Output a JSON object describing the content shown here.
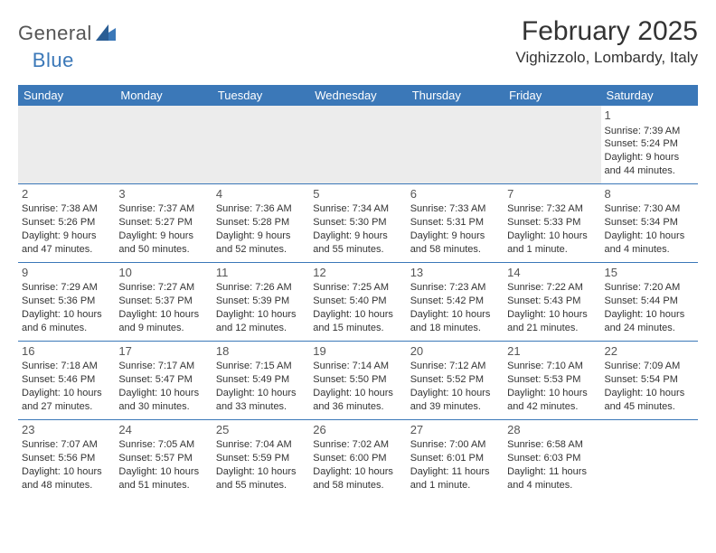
{
  "logo": {
    "general": "General",
    "blue": "Blue"
  },
  "title": "February 2025",
  "location": "Vighizzolo, Lombardy, Italy",
  "colors": {
    "header_bg": "#3b78b8",
    "header_text": "#ffffff",
    "rule": "#3b78b8",
    "body_text": "#333333",
    "empty_bg": "#ececec",
    "logo_gray": "#555555",
    "logo_blue": "#3b78b8"
  },
  "weekdays": [
    "Sunday",
    "Monday",
    "Tuesday",
    "Wednesday",
    "Thursday",
    "Friday",
    "Saturday"
  ],
  "weeks": [
    [
      null,
      null,
      null,
      null,
      null,
      null,
      {
        "n": "1",
        "sr": "7:39 AM",
        "ss": "5:24 PM",
        "d1": "9 hours",
        "d2": "and 44 minutes."
      }
    ],
    [
      {
        "n": "2",
        "sr": "7:38 AM",
        "ss": "5:26 PM",
        "d1": "9 hours",
        "d2": "and 47 minutes."
      },
      {
        "n": "3",
        "sr": "7:37 AM",
        "ss": "5:27 PM",
        "d1": "9 hours",
        "d2": "and 50 minutes."
      },
      {
        "n": "4",
        "sr": "7:36 AM",
        "ss": "5:28 PM",
        "d1": "9 hours",
        "d2": "and 52 minutes."
      },
      {
        "n": "5",
        "sr": "7:34 AM",
        "ss": "5:30 PM",
        "d1": "9 hours",
        "d2": "and 55 minutes."
      },
      {
        "n": "6",
        "sr": "7:33 AM",
        "ss": "5:31 PM",
        "d1": "9 hours",
        "d2": "and 58 minutes."
      },
      {
        "n": "7",
        "sr": "7:32 AM",
        "ss": "5:33 PM",
        "d1": "10 hours",
        "d2": "and 1 minute."
      },
      {
        "n": "8",
        "sr": "7:30 AM",
        "ss": "5:34 PM",
        "d1": "10 hours",
        "d2": "and 4 minutes."
      }
    ],
    [
      {
        "n": "9",
        "sr": "7:29 AM",
        "ss": "5:36 PM",
        "d1": "10 hours",
        "d2": "and 6 minutes."
      },
      {
        "n": "10",
        "sr": "7:27 AM",
        "ss": "5:37 PM",
        "d1": "10 hours",
        "d2": "and 9 minutes."
      },
      {
        "n": "11",
        "sr": "7:26 AM",
        "ss": "5:39 PM",
        "d1": "10 hours",
        "d2": "and 12 minutes."
      },
      {
        "n": "12",
        "sr": "7:25 AM",
        "ss": "5:40 PM",
        "d1": "10 hours",
        "d2": "and 15 minutes."
      },
      {
        "n": "13",
        "sr": "7:23 AM",
        "ss": "5:42 PM",
        "d1": "10 hours",
        "d2": "and 18 minutes."
      },
      {
        "n": "14",
        "sr": "7:22 AM",
        "ss": "5:43 PM",
        "d1": "10 hours",
        "d2": "and 21 minutes."
      },
      {
        "n": "15",
        "sr": "7:20 AM",
        "ss": "5:44 PM",
        "d1": "10 hours",
        "d2": "and 24 minutes."
      }
    ],
    [
      {
        "n": "16",
        "sr": "7:18 AM",
        "ss": "5:46 PM",
        "d1": "10 hours",
        "d2": "and 27 minutes."
      },
      {
        "n": "17",
        "sr": "7:17 AM",
        "ss": "5:47 PM",
        "d1": "10 hours",
        "d2": "and 30 minutes."
      },
      {
        "n": "18",
        "sr": "7:15 AM",
        "ss": "5:49 PM",
        "d1": "10 hours",
        "d2": "and 33 minutes."
      },
      {
        "n": "19",
        "sr": "7:14 AM",
        "ss": "5:50 PM",
        "d1": "10 hours",
        "d2": "and 36 minutes."
      },
      {
        "n": "20",
        "sr": "7:12 AM",
        "ss": "5:52 PM",
        "d1": "10 hours",
        "d2": "and 39 minutes."
      },
      {
        "n": "21",
        "sr": "7:10 AM",
        "ss": "5:53 PM",
        "d1": "10 hours",
        "d2": "and 42 minutes."
      },
      {
        "n": "22",
        "sr": "7:09 AM",
        "ss": "5:54 PM",
        "d1": "10 hours",
        "d2": "and 45 minutes."
      }
    ],
    [
      {
        "n": "23",
        "sr": "7:07 AM",
        "ss": "5:56 PM",
        "d1": "10 hours",
        "d2": "and 48 minutes."
      },
      {
        "n": "24",
        "sr": "7:05 AM",
        "ss": "5:57 PM",
        "d1": "10 hours",
        "d2": "and 51 minutes."
      },
      {
        "n": "25",
        "sr": "7:04 AM",
        "ss": "5:59 PM",
        "d1": "10 hours",
        "d2": "and 55 minutes."
      },
      {
        "n": "26",
        "sr": "7:02 AM",
        "ss": "6:00 PM",
        "d1": "10 hours",
        "d2": "and 58 minutes."
      },
      {
        "n": "27",
        "sr": "7:00 AM",
        "ss": "6:01 PM",
        "d1": "11 hours",
        "d2": "and 1 minute."
      },
      {
        "n": "28",
        "sr": "6:58 AM",
        "ss": "6:03 PM",
        "d1": "11 hours",
        "d2": "and 4 minutes."
      },
      null
    ]
  ],
  "labels": {
    "sunrise": "Sunrise:",
    "sunset": "Sunset:",
    "daylight": "Daylight:"
  }
}
